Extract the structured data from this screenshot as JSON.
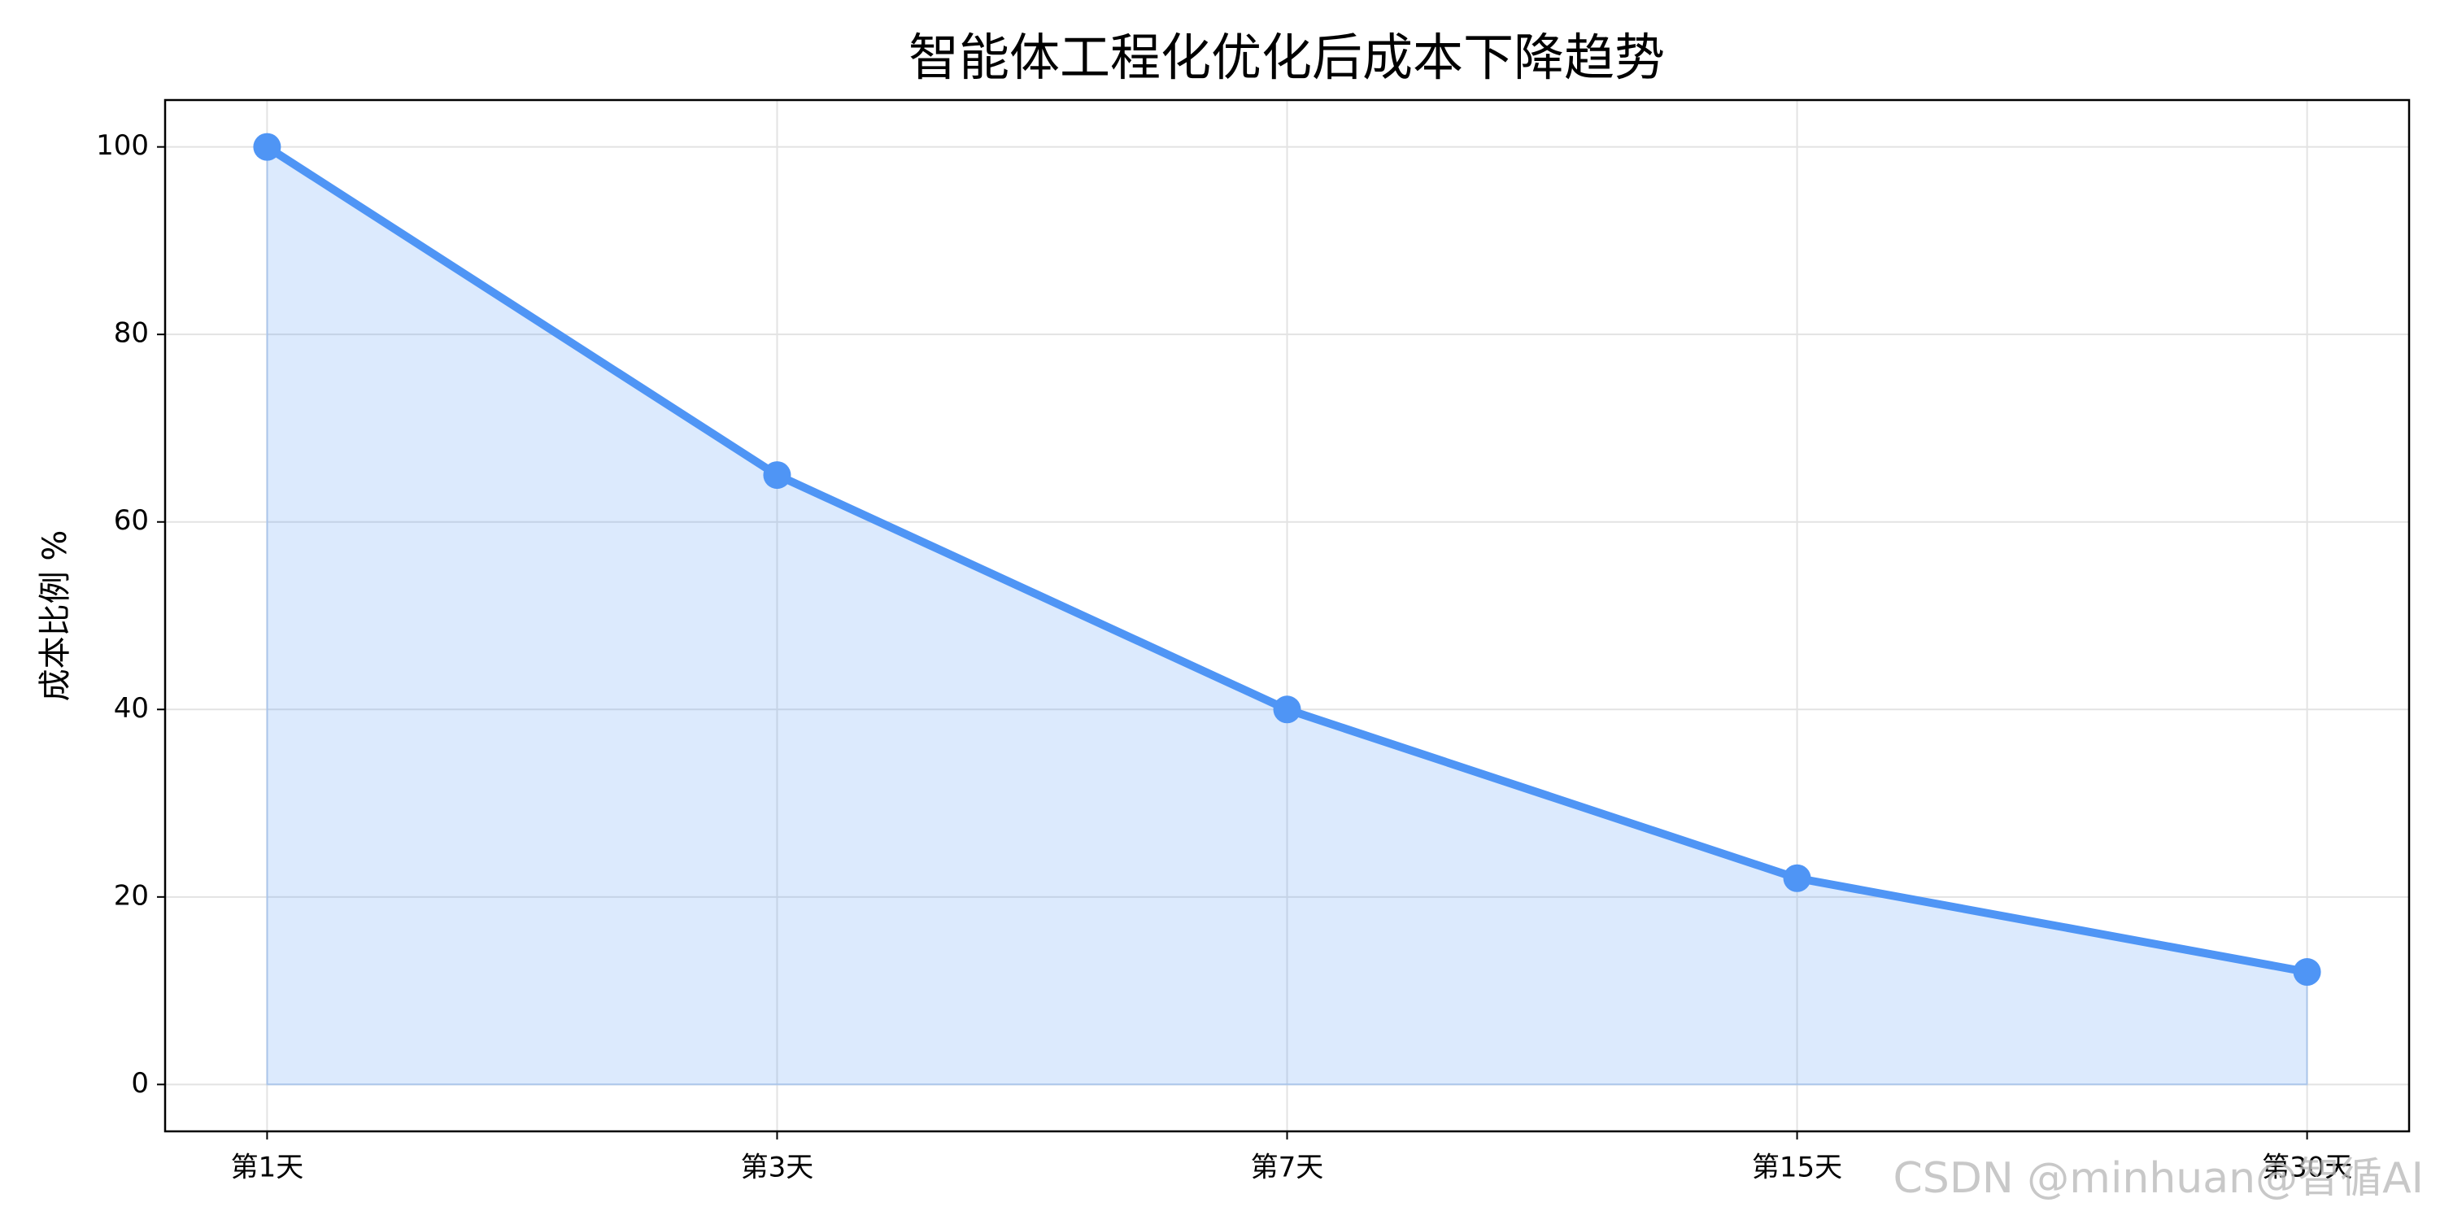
{
  "chart_data": {
    "type": "line",
    "title": "智能体工程化优化后成本下降趋势",
    "ylabel": "成本比例 %",
    "categories": [
      "第1天",
      "第3天",
      "第7天",
      "第15天",
      "第30天"
    ],
    "series": [
      {
        "name": "成本比例",
        "color": "#4f95f5",
        "values": [
          100,
          65,
          40,
          22,
          12
        ]
      }
    ],
    "fill": true,
    "ylim": [
      -5,
      105
    ],
    "yticks": [
      0,
      20,
      40,
      60,
      80,
      100
    ],
    "grid": true,
    "watermark": "CSDN @minhuan@智循AI"
  }
}
